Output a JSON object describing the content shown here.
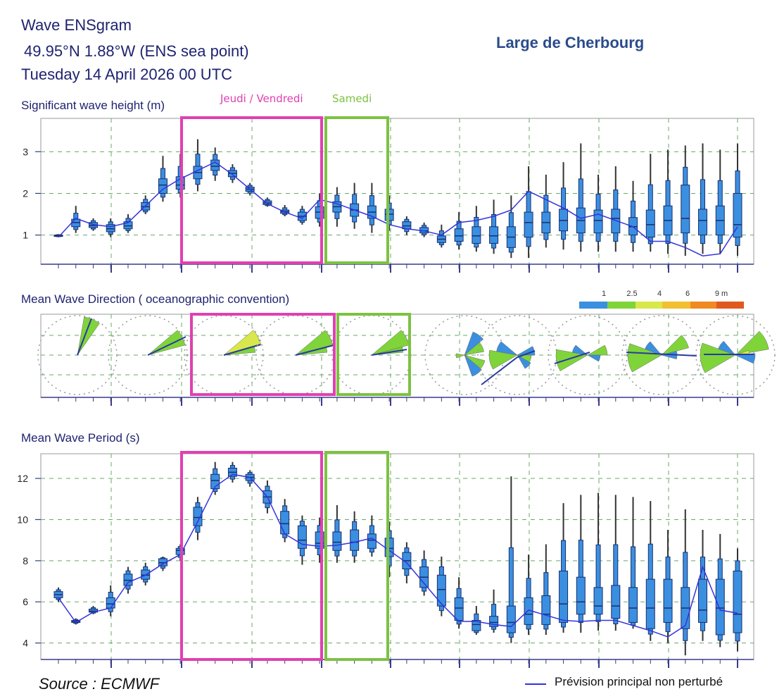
{
  "header": {
    "title": "Wave ENSgram",
    "coords": "49.95°N 1.88°W (ENS sea point)",
    "date": "Tuesday 14 April 2026 00 UTC",
    "location": "Large de Cherbourg"
  },
  "annotations": {
    "pink_label": "Jeudi / Vendredi",
    "green_label": "Samedi",
    "pink_color": "#e040b0",
    "green_color": "#7cc242"
  },
  "footer": {
    "source": "Source : ECMWF",
    "legend_label": "Prévision principal non perturbé"
  },
  "colors": {
    "box": "#3b8fe0",
    "box_stroke": "#1a2f6e",
    "control_line": "#3333dd",
    "grid": "#6aa86a",
    "axis": "#3a3a8a",
    "frame": "#999999"
  },
  "wave_scale": {
    "labels": [
      "1",
      "2.5",
      "4",
      "6",
      "9 m"
    ],
    "colors": [
      "#3b8fe0",
      "#7fd43a",
      "#d8e84a",
      "#f2c030",
      "#f08a20",
      "#e05a20"
    ]
  },
  "chart_data": [
    {
      "title": "Significant wave height (m)",
      "type": "boxplot",
      "yticks": [
        "1",
        "2",
        "3"
      ],
      "ylim": [
        0.3,
        3.8
      ],
      "grid": true,
      "x_index_range": [
        0,
        39
      ],
      "boxes": [
        [
          0.95,
          0.97,
          0.98,
          1.0,
          1.02
        ],
        [
          1.05,
          1.2,
          1.3,
          1.38,
          1.7
        ],
        [
          1.1,
          1.18,
          1.23,
          1.3,
          1.4
        ],
        [
          0.95,
          1.08,
          1.15,
          1.25,
          1.4
        ],
        [
          1.05,
          1.15,
          1.22,
          1.32,
          1.5
        ],
        [
          1.5,
          1.6,
          1.68,
          1.78,
          1.95
        ],
        [
          1.8,
          2.0,
          2.2,
          2.35,
          2.9
        ],
        [
          1.9,
          2.1,
          2.2,
          2.4,
          2.95
        ],
        [
          2.05,
          2.35,
          2.5,
          2.65,
          3.3
        ],
        [
          2.3,
          2.55,
          2.65,
          2.8,
          3.1
        ],
        [
          2.25,
          2.4,
          2.48,
          2.55,
          2.7
        ],
        [
          1.95,
          2.05,
          2.1,
          2.15,
          2.25
        ],
        [
          1.68,
          1.73,
          1.77,
          1.82,
          1.9
        ],
        [
          1.45,
          1.52,
          1.56,
          1.6,
          1.72
        ],
        [
          1.25,
          1.35,
          1.45,
          1.55,
          1.7
        ],
        [
          1.2,
          1.4,
          1.55,
          1.68,
          2.0
        ],
        [
          1.2,
          1.55,
          1.68,
          1.8,
          2.15
        ],
        [
          1.15,
          1.45,
          1.6,
          1.75,
          2.25
        ],
        [
          1.05,
          1.4,
          1.55,
          1.7,
          2.25
        ],
        [
          1.1,
          1.35,
          1.5,
          1.62,
          1.95
        ],
        [
          1.0,
          1.15,
          1.22,
          1.32,
          1.45
        ],
        [
          0.95,
          1.05,
          1.1,
          1.18,
          1.3
        ],
        [
          0.7,
          0.82,
          0.9,
          0.98,
          1.25
        ],
        [
          0.65,
          0.85,
          0.98,
          1.15,
          1.55
        ],
        [
          0.6,
          0.8,
          0.98,
          1.2,
          1.7
        ],
        [
          0.55,
          0.8,
          0.98,
          1.2,
          1.85
        ],
        [
          0.45,
          0.7,
          0.95,
          1.2,
          1.95
        ],
        [
          0.45,
          0.95,
          1.3,
          1.55,
          2.65
        ],
        [
          0.7,
          1.05,
          1.3,
          1.55,
          2.45
        ],
        [
          0.65,
          1.1,
          1.35,
          1.62,
          2.75
        ],
        [
          0.6,
          1.05,
          1.35,
          1.65,
          3.2
        ],
        [
          0.6,
          1.05,
          1.35,
          1.6,
          2.45
        ],
        [
          0.6,
          1.05,
          1.4,
          1.62,
          2.65
        ],
        [
          0.6,
          1.0,
          1.2,
          1.42,
          2.3
        ],
        [
          0.6,
          0.95,
          1.25,
          1.6,
          2.95
        ],
        [
          0.55,
          1.0,
          1.35,
          1.7,
          3.05
        ],
        [
          0.5,
          1.05,
          1.4,
          2.2,
          3.15
        ],
        [
          0.55,
          1.0,
          1.35,
          1.62,
          3.2
        ],
        [
          0.55,
          1.0,
          1.35,
          1.7,
          3.05
        ],
        [
          0.5,
          0.95,
          1.25,
          2.0,
          3.2
        ]
      ],
      "control_x": [
        0,
        1,
        2,
        3,
        4,
        5,
        6,
        7,
        8,
        9,
        10,
        11,
        12,
        13,
        14,
        15,
        16,
        17,
        18,
        19,
        20,
        21,
        22,
        23,
        24,
        25,
        26,
        27,
        28,
        29,
        30,
        31,
        32,
        33,
        34,
        35,
        36,
        37,
        38,
        39
      ],
      "control": [
        0.95,
        1.4,
        1.25,
        1.2,
        1.3,
        1.7,
        2.1,
        2.35,
        2.55,
        2.75,
        2.45,
        2.1,
        1.75,
        1.55,
        1.4,
        1.85,
        1.75,
        1.6,
        1.45,
        1.25,
        1.15,
        1.1,
        1.0,
        1.3,
        1.35,
        1.45,
        1.6,
        2.05,
        1.85,
        1.65,
        1.4,
        1.5,
        1.35,
        1.2,
        0.85,
        0.85,
        0.7,
        0.5,
        0.55,
        1.2
      ]
    },
    {
      "title": "Mean Wave Direction ( oceanographic convention)",
      "type": "rose",
      "days": 10
    },
    {
      "title": "Mean Wave Period (s)",
      "type": "boxplot",
      "yticks": [
        "4",
        "6",
        "8",
        "10",
        "12"
      ],
      "ylim": [
        3.2,
        13.2
      ],
      "grid": true,
      "x_index_range": [
        0,
        39
      ],
      "boxes": [
        [
          6.0,
          6.2,
          6.35,
          6.5,
          6.7
        ],
        [
          4.9,
          5.0,
          5.05,
          5.1,
          5.2
        ],
        [
          5.4,
          5.5,
          5.55,
          5.65,
          5.8
        ],
        [
          5.3,
          5.7,
          5.9,
          6.2,
          6.8
        ],
        [
          6.4,
          6.8,
          7.05,
          7.35,
          7.7
        ],
        [
          6.8,
          7.1,
          7.3,
          7.55,
          7.9
        ],
        [
          7.5,
          7.75,
          7.9,
          8.1,
          8.2
        ],
        [
          8.0,
          8.3,
          8.5,
          8.6,
          8.8
        ],
        [
          9.0,
          9.7,
          10.1,
          10.6,
          11.1
        ],
        [
          11.2,
          11.5,
          11.9,
          12.2,
          12.8
        ],
        [
          11.8,
          12.1,
          12.3,
          12.5,
          12.8
        ],
        [
          11.6,
          11.9,
          12.05,
          12.2,
          12.4
        ],
        [
          10.3,
          10.8,
          11.1,
          11.4,
          11.9
        ],
        [
          8.9,
          9.3,
          9.8,
          10.4,
          11.0
        ],
        [
          7.8,
          8.6,
          9.0,
          9.7,
          10.2
        ],
        [
          7.9,
          8.6,
          8.85,
          9.4,
          10.1
        ],
        [
          7.9,
          8.5,
          8.9,
          9.4,
          10.7
        ],
        [
          7.9,
          8.5,
          8.9,
          9.5,
          10.4
        ],
        [
          8.2,
          8.6,
          9.0,
          9.3,
          10.2
        ],
        [
          7.2,
          8.2,
          8.6,
          9.1,
          9.9
        ],
        [
          6.9,
          7.6,
          8.0,
          8.4,
          8.9
        ],
        [
          6.3,
          6.7,
          7.2,
          7.7,
          8.5
        ],
        [
          5.3,
          5.8,
          6.6,
          7.3,
          8.2
        ],
        [
          4.7,
          5.1,
          5.7,
          6.2,
          7.2
        ],
        [
          4.4,
          4.6,
          4.9,
          5.1,
          5.8
        ],
        [
          4.5,
          4.8,
          5.0,
          5.3,
          6.6
        ],
        [
          4.0,
          4.5,
          5.0,
          5.8,
          12.1
        ],
        [
          4.4,
          4.9,
          5.4,
          6.2,
          8.3
        ],
        [
          4.4,
          4.9,
          5.4,
          6.3,
          8.8
        ],
        [
          4.5,
          5.0,
          5.9,
          7.5,
          10.8
        ],
        [
          4.5,
          5.4,
          6.0,
          7.2,
          11.2
        ],
        [
          4.6,
          5.4,
          5.8,
          6.7,
          11.3
        ],
        [
          4.6,
          5.2,
          5.8,
          6.8,
          11.2
        ],
        [
          4.7,
          5.0,
          5.7,
          6.7,
          11.1
        ],
        [
          4.1,
          4.7,
          5.7,
          7.1,
          10.9
        ],
        [
          4.0,
          5.0,
          5.7,
          7.1,
          9.5
        ],
        [
          3.4,
          4.7,
          5.7,
          6.7,
          10.5
        ],
        [
          4.1,
          5.0,
          5.6,
          7.1,
          9.5
        ],
        [
          3.8,
          4.4,
          5.7,
          7.1,
          9.3
        ],
        [
          3.6,
          4.5,
          5.4,
          7.5,
          8.6
        ]
      ],
      "control_x": [
        0,
        1,
        2,
        3,
        4,
        5,
        6,
        7,
        8,
        9,
        10,
        11,
        12,
        13,
        14,
        15,
        16,
        17,
        18,
        19,
        20,
        21,
        22,
        23,
        24,
        25,
        26,
        27,
        28,
        29,
        30,
        31,
        32,
        33,
        34,
        35,
        36,
        37,
        38,
        39
      ],
      "control": [
        6.2,
        5.0,
        5.5,
        5.7,
        6.95,
        7.3,
        7.85,
        8.3,
        9.9,
        11.6,
        12.2,
        12.05,
        11.1,
        9.3,
        8.8,
        8.7,
        8.75,
        8.9,
        9.1,
        8.5,
        7.9,
        6.9,
        5.9,
        5.05,
        5.05,
        4.9,
        4.8,
        5.6,
        5.35,
        5.1,
        5.05,
        5.1,
        5.1,
        4.85,
        4.6,
        4.3,
        4.85,
        7.7,
        5.6,
        5.45
      ]
    }
  ]
}
